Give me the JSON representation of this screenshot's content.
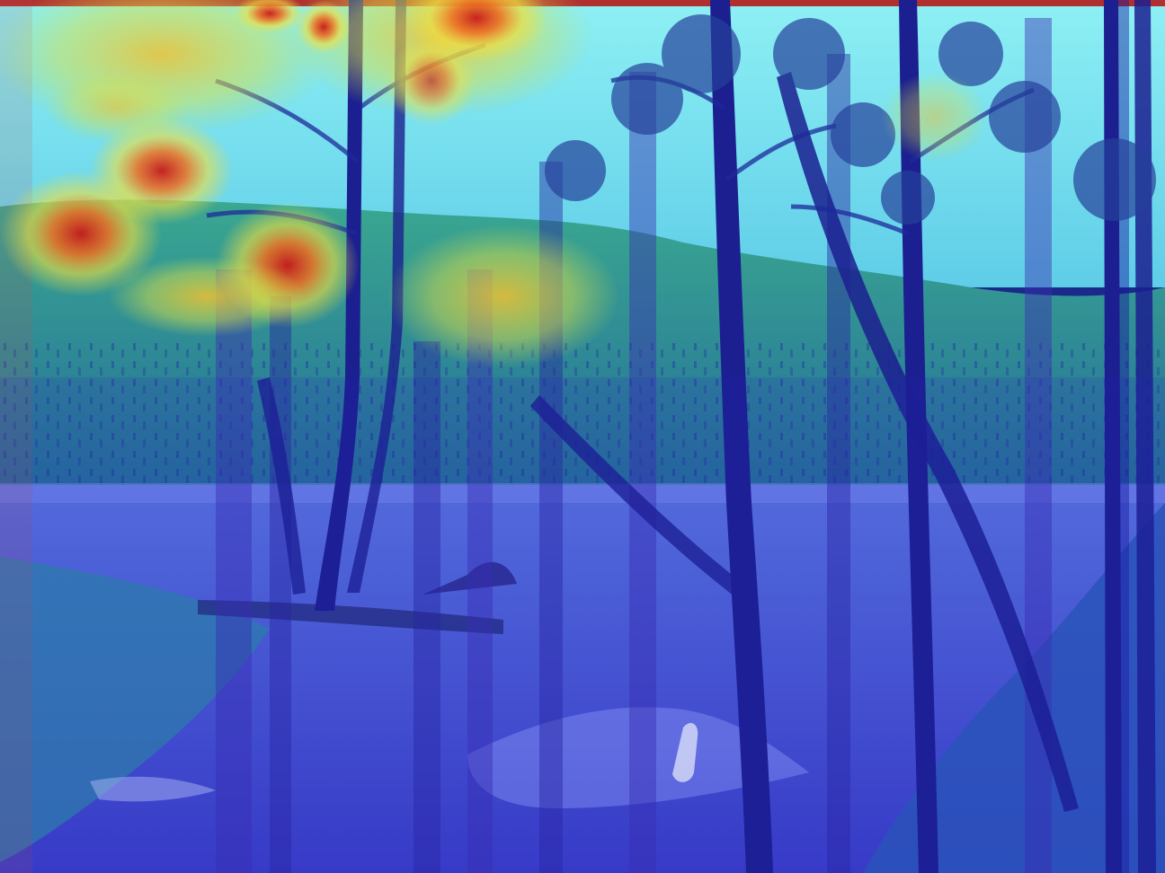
{
  "image": {
    "overlay": "attention-heatmap",
    "colormap": [
      "#1a1aa0",
      "#2f5fe0",
      "#4fd0e8",
      "#8ee08a",
      "#f0e040",
      "#f08020",
      "#c81818"
    ],
    "colors": {
      "sky": "#7ee6f2",
      "far_forest": "#2f9a8a",
      "water": "#4a4fd8",
      "trunk": "#1b1f8f",
      "foreground": "#2a55b0",
      "top_border": "#b03030"
    }
  }
}
